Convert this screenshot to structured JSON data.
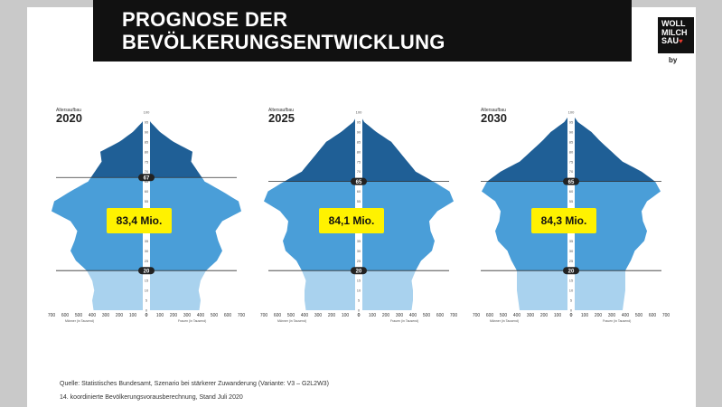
{
  "header": {
    "title_line1": "PROGNOSE DER",
    "title_line2": "BEVÖLKERUNGSENTWICKLUNG"
  },
  "logo": {
    "line1": "WOLL",
    "line2": "MILCH",
    "line3": "SAU",
    "heart": "♥",
    "by": "by"
  },
  "colors": {
    "banner": "#111111",
    "badge": "#fff200",
    "old": "#1f5f96",
    "mid": "#4a9ed8",
    "young": "#a9d2ee"
  },
  "chart_data": [
    {
      "type": "area",
      "subtitle": "Altersaufbau",
      "title": "2020",
      "total_label": "83,4 Mio.",
      "retire_marker": "67",
      "young_marker": "20",
      "age_ticks": [
        "100",
        "95",
        "90",
        "85",
        "80",
        "75",
        "70",
        "65",
        "60",
        "55",
        "50",
        "45",
        "40",
        "35",
        "30",
        "25",
        "20",
        "15",
        "10",
        "5",
        "0"
      ],
      "x_ticks": [
        "700",
        "600",
        "500",
        "400",
        "300",
        "200",
        "100",
        "0",
        "0",
        "100",
        "200",
        "300",
        "400",
        "500",
        "600",
        "700"
      ],
      "xlabel_left": "Männer (in Tausend)",
      "xlabel_right": "Frauen (in Tausend)",
      "profile": [
        [
          0,
          390
        ],
        [
          5,
          400
        ],
        [
          10,
          385
        ],
        [
          15,
          400
        ],
        [
          20,
          440
        ],
        [
          25,
          520
        ],
        [
          30,
          560
        ],
        [
          35,
          530
        ],
        [
          40,
          510
        ],
        [
          45,
          560
        ],
        [
          50,
          700
        ],
        [
          55,
          680
        ],
        [
          60,
          560
        ],
        [
          65,
          430
        ],
        [
          70,
          380
        ],
        [
          75,
          330
        ],
        [
          80,
          340
        ],
        [
          85,
          200
        ],
        [
          90,
          100
        ],
        [
          95,
          30
        ],
        [
          100,
          0
        ]
      ]
    },
    {
      "type": "area",
      "subtitle": "Altersaufbau",
      "title": "2025",
      "total_label": "84,1 Mio.",
      "retire_marker": "65",
      "young_marker": "20",
      "age_ticks": [
        "100",
        "95",
        "90",
        "85",
        "80",
        "75",
        "70",
        "65",
        "60",
        "55",
        "50",
        "45",
        "40",
        "35",
        "30",
        "25",
        "20",
        "15",
        "10",
        "5",
        "0"
      ],
      "x_ticks": [
        "700",
        "600",
        "500",
        "400",
        "300",
        "200",
        "100",
        "0",
        "0",
        "100",
        "200",
        "300",
        "400",
        "500",
        "600",
        "700"
      ],
      "xlabel_left": "Männer (in Tausend)",
      "xlabel_right": "Frauen (in Tausend)",
      "profile": [
        [
          0,
          390
        ],
        [
          5,
          400
        ],
        [
          10,
          400
        ],
        [
          15,
          390
        ],
        [
          20,
          420
        ],
        [
          25,
          460
        ],
        [
          30,
          540
        ],
        [
          35,
          560
        ],
        [
          40,
          530
        ],
        [
          45,
          520
        ],
        [
          50,
          580
        ],
        [
          55,
          700
        ],
        [
          60,
          670
        ],
        [
          65,
          550
        ],
        [
          70,
          420
        ],
        [
          75,
          360
        ],
        [
          80,
          300
        ],
        [
          85,
          240
        ],
        [
          90,
          130
        ],
        [
          95,
          40
        ],
        [
          100,
          0
        ]
      ]
    },
    {
      "type": "area",
      "subtitle": "Altersaufbau",
      "title": "2030",
      "total_label": "84,3 Mio.",
      "retire_marker": "65",
      "young_marker": "20",
      "age_ticks": [
        "100",
        "95",
        "90",
        "85",
        "80",
        "75",
        "70",
        "65",
        "60",
        "55",
        "50",
        "45",
        "40",
        "35",
        "30",
        "25",
        "20",
        "15",
        "10",
        "5",
        "0"
      ],
      "x_ticks": [
        "700",
        "600",
        "500",
        "400",
        "300",
        "200",
        "100",
        "0",
        "0",
        "100",
        "200",
        "300",
        "400",
        "500",
        "600",
        "700"
      ],
      "xlabel_left": "Männer (in Tausend)",
      "xlabel_right": "Frauen (in Tausend)",
      "profile": [
        [
          0,
          380
        ],
        [
          5,
          390
        ],
        [
          10,
          400
        ],
        [
          15,
          400
        ],
        [
          20,
          400
        ],
        [
          25,
          440
        ],
        [
          30,
          470
        ],
        [
          35,
          540
        ],
        [
          40,
          560
        ],
        [
          45,
          530
        ],
        [
          50,
          520
        ],
        [
          55,
          560
        ],
        [
          60,
          660
        ],
        [
          65,
          620
        ],
        [
          70,
          520
        ],
        [
          75,
          380
        ],
        [
          80,
          300
        ],
        [
          85,
          220
        ],
        [
          90,
          150
        ],
        [
          95,
          50
        ],
        [
          100,
          0
        ]
      ]
    }
  ],
  "source": {
    "line1": "Quelle: Statistisches Bundesamt, Szenario bei stärkerer Zuwanderung (Variante: V3 – G2L2W3)",
    "line2": "14. koordinierte Bevölkerungsvorausberechnung, Stand Juli 2020"
  }
}
